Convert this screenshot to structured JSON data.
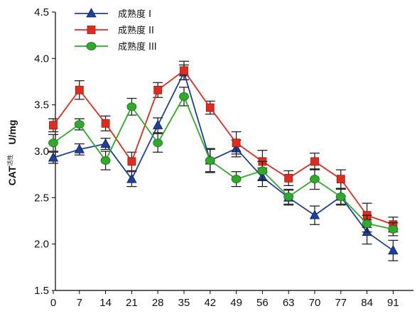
{
  "chart_data": {
    "type": "line",
    "title": "",
    "xlabel": "",
    "ylabel": {
      "main": "CAT",
      "subscript": "活性",
      "unit": "U/mg"
    },
    "ylim": [
      1.5,
      4.5
    ],
    "yticks": [
      "1.5",
      "2.0",
      "2.5",
      "3.0",
      "3.5",
      "4.0",
      "4.5"
    ],
    "categories": [
      "0",
      "7",
      "14",
      "21",
      "28",
      "35",
      "42",
      "49",
      "56",
      "63",
      "70",
      "77",
      "84",
      "91"
    ],
    "legend_position": "top-left",
    "error_bars": true,
    "series": [
      {
        "name": "成熟度 I",
        "color": "#1f3f9c",
        "marker": "triangle",
        "values": [
          2.93,
          3.02,
          3.08,
          2.7,
          3.28,
          3.85,
          2.9,
          3.03,
          2.72,
          2.5,
          2.31,
          2.51,
          2.13,
          1.93
        ],
        "errors": [
          0.06,
          0.06,
          0.06,
          0.08,
          0.08,
          0.08,
          0.13,
          0.09,
          0.1,
          0.08,
          0.1,
          0.08,
          0.13,
          0.11
        ]
      },
      {
        "name": "成熟度 II",
        "color": "#e02b1e",
        "marker": "square",
        "values": [
          3.28,
          3.66,
          3.3,
          2.89,
          3.66,
          3.87,
          3.47,
          3.09,
          2.89,
          2.71,
          2.89,
          2.7,
          2.31,
          2.21
        ],
        "errors": [
          0.07,
          0.1,
          0.08,
          0.1,
          0.08,
          0.1,
          0.07,
          0.12,
          0.12,
          0.08,
          0.09,
          0.1,
          0.13,
          0.08
        ]
      },
      {
        "name": "成熟度 III",
        "color": "#2faa2a",
        "marker": "circle",
        "values": [
          3.09,
          3.29,
          2.9,
          3.48,
          3.09,
          3.59,
          2.9,
          2.7,
          2.79,
          2.51,
          2.7,
          2.51,
          2.22,
          2.16
        ],
        "errors": [
          0.09,
          0.06,
          0.1,
          0.09,
          0.1,
          0.1,
          0.12,
          0.08,
          0.1,
          0.08,
          0.11,
          0.09,
          0.09,
          0.07
        ]
      }
    ]
  }
}
